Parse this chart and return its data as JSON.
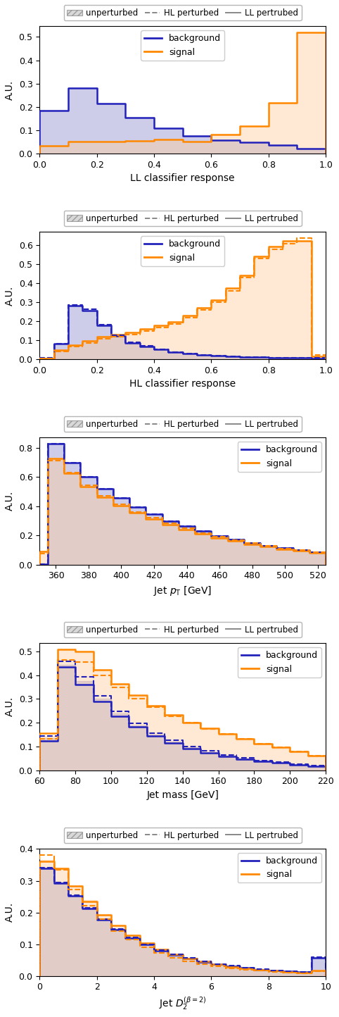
{
  "panels": [
    {
      "xlabel": "LL classifier response",
      "bins": [
        0.0,
        0.1,
        0.2,
        0.3,
        0.4,
        0.5,
        0.6,
        0.7,
        0.8,
        0.9,
        1.0
      ],
      "bg_unpert": [
        0.185,
        0.28,
        0.215,
        0.155,
        0.108,
        0.075,
        0.058,
        0.048,
        0.035,
        0.022
      ],
      "sig_unpert": [
        0.032,
        0.05,
        0.05,
        0.054,
        0.06,
        0.052,
        0.08,
        0.118,
        0.218,
        0.52
      ],
      "bg_HL": null,
      "sig_HL": null,
      "bg_LL": [
        0.185,
        0.28,
        0.215,
        0.155,
        0.108,
        0.075,
        0.058,
        0.048,
        0.035,
        0.022
      ],
      "sig_LL": [
        0.032,
        0.05,
        0.05,
        0.054,
        0.06,
        0.052,
        0.08,
        0.118,
        0.218,
        0.52
      ],
      "show_HL": false,
      "show_LL": true,
      "inner_legend_loc": "upper center"
    },
    {
      "xlabel": "HL classifier response",
      "bins": [
        0.0,
        0.05,
        0.1,
        0.15,
        0.2,
        0.25,
        0.3,
        0.35,
        0.4,
        0.45,
        0.5,
        0.55,
        0.6,
        0.65,
        0.7,
        0.75,
        0.8,
        0.85,
        0.9,
        0.95,
        1.0
      ],
      "bg_unpert": [
        0.004,
        0.08,
        0.28,
        0.255,
        0.178,
        0.12,
        0.085,
        0.065,
        0.05,
        0.036,
        0.028,
        0.022,
        0.018,
        0.014,
        0.011,
        0.009,
        0.007,
        0.006,
        0.005,
        0.004
      ],
      "sig_unpert": [
        0.004,
        0.048,
        0.075,
        0.095,
        0.118,
        0.128,
        0.14,
        0.158,
        0.178,
        0.196,
        0.23,
        0.27,
        0.312,
        0.372,
        0.442,
        0.542,
        0.592,
        0.622,
        0.622,
        0.015
      ],
      "bg_HL": [
        0.005,
        0.082,
        0.286,
        0.262,
        0.182,
        0.124,
        0.088,
        0.068,
        0.052,
        0.038,
        0.029,
        0.023,
        0.019,
        0.015,
        0.012,
        0.01,
        0.008,
        0.007,
        0.006,
        0.005
      ],
      "sig_HL": [
        0.003,
        0.04,
        0.065,
        0.085,
        0.108,
        0.118,
        0.128,
        0.148,
        0.168,
        0.185,
        0.218,
        0.258,
        0.298,
        0.358,
        0.428,
        0.528,
        0.578,
        0.608,
        0.638,
        0.02
      ],
      "bg_LL": null,
      "sig_LL": null,
      "show_HL": true,
      "show_LL": false,
      "inner_legend_loc": "upper center"
    },
    {
      "xlabel": "Jet $p_\\mathrm{T}$ [GeV]",
      "bins": [
        350,
        355,
        365,
        375,
        385,
        395,
        405,
        415,
        425,
        435,
        445,
        455,
        465,
        475,
        485,
        495,
        505,
        515,
        525
      ],
      "bg_unpert": [
        0.005,
        0.83,
        0.7,
        0.6,
        0.52,
        0.455,
        0.395,
        0.345,
        0.3,
        0.262,
        0.228,
        0.198,
        0.172,
        0.15,
        0.13,
        0.113,
        0.098,
        0.085
      ],
      "sig_unpert": [
        0.095,
        0.73,
        0.622,
        0.528,
        0.458,
        0.398,
        0.348,
        0.308,
        0.268,
        0.235,
        0.205,
        0.18,
        0.157,
        0.137,
        0.12,
        0.104,
        0.092,
        0.08
      ],
      "bg_HL": [
        0.005,
        0.83,
        0.7,
        0.6,
        0.52,
        0.455,
        0.395,
        0.345,
        0.3,
        0.262,
        0.228,
        0.198,
        0.172,
        0.15,
        0.13,
        0.113,
        0.098,
        0.085
      ],
      "sig_HL": [
        0.078,
        0.712,
        0.632,
        0.542,
        0.472,
        0.412,
        0.362,
        0.322,
        0.282,
        0.248,
        0.216,
        0.19,
        0.166,
        0.146,
        0.128,
        0.112,
        0.1,
        0.088
      ],
      "bg_LL": [
        0.005,
        0.83,
        0.7,
        0.6,
        0.52,
        0.455,
        0.395,
        0.345,
        0.3,
        0.262,
        0.228,
        0.198,
        0.172,
        0.15,
        0.13,
        0.113,
        0.098,
        0.085
      ],
      "sig_LL": [
        0.09,
        0.725,
        0.627,
        0.535,
        0.464,
        0.404,
        0.354,
        0.314,
        0.275,
        0.241,
        0.21,
        0.184,
        0.161,
        0.141,
        0.123,
        0.107,
        0.095,
        0.083
      ],
      "show_HL": true,
      "show_LL": true,
      "inner_legend_loc": "upper right"
    },
    {
      "xlabel": "Jet mass [GeV]",
      "bins": [
        60,
        70,
        80,
        90,
        100,
        110,
        120,
        130,
        140,
        150,
        160,
        170,
        180,
        190,
        200,
        210,
        220
      ],
      "bg_unpert": [
        0.135,
        0.445,
        0.375,
        0.3,
        0.238,
        0.19,
        0.15,
        0.12,
        0.096,
        0.077,
        0.062,
        0.05,
        0.04,
        0.032,
        0.025,
        0.018
      ],
      "sig_unpert": [
        0.145,
        0.505,
        0.495,
        0.42,
        0.36,
        0.31,
        0.268,
        0.228,
        0.198,
        0.172,
        0.148,
        0.128,
        0.108,
        0.092,
        0.075,
        0.058
      ],
      "bg_HL": [
        0.145,
        0.458,
        0.392,
        0.312,
        0.248,
        0.198,
        0.157,
        0.126,
        0.101,
        0.081,
        0.065,
        0.053,
        0.042,
        0.034,
        0.027,
        0.02
      ],
      "sig_HL": [
        0.132,
        0.465,
        0.455,
        0.4,
        0.348,
        0.302,
        0.265,
        0.228,
        0.2,
        0.175,
        0.152,
        0.132,
        0.112,
        0.096,
        0.079,
        0.062
      ],
      "bg_LL": [
        0.125,
        0.435,
        0.362,
        0.29,
        0.228,
        0.183,
        0.144,
        0.115,
        0.092,
        0.073,
        0.059,
        0.048,
        0.038,
        0.031,
        0.024,
        0.017
      ],
      "sig_LL": [
        0.155,
        0.51,
        0.5,
        0.424,
        0.364,
        0.315,
        0.272,
        0.232,
        0.202,
        0.176,
        0.152,
        0.132,
        0.112,
        0.096,
        0.078,
        0.06
      ],
      "show_HL": true,
      "show_LL": true,
      "inner_legend_loc": "upper right"
    },
    {
      "xlabel": "Jet $D_2^{(\\beta=2)}$",
      "bins": [
        0.0,
        0.5,
        1.0,
        1.5,
        2.0,
        2.5,
        3.0,
        3.5,
        4.0,
        4.5,
        5.0,
        5.5,
        6.0,
        6.5,
        7.0,
        7.5,
        8.0,
        8.5,
        9.0,
        9.5,
        10.0
      ],
      "bg_unpert": [
        0.34,
        0.295,
        0.255,
        0.215,
        0.178,
        0.148,
        0.122,
        0.1,
        0.082,
        0.068,
        0.056,
        0.046,
        0.038,
        0.032,
        0.026,
        0.022,
        0.018,
        0.015,
        0.013,
        0.06
      ],
      "sig_unpert": [
        0.365,
        0.34,
        0.285,
        0.238,
        0.195,
        0.16,
        0.13,
        0.106,
        0.086,
        0.07,
        0.057,
        0.047,
        0.038,
        0.031,
        0.026,
        0.021,
        0.018,
        0.015,
        0.012,
        0.02
      ],
      "bg_HL": [
        0.34,
        0.295,
        0.255,
        0.215,
        0.178,
        0.148,
        0.122,
        0.1,
        0.082,
        0.068,
        0.056,
        0.046,
        0.038,
        0.032,
        0.026,
        0.022,
        0.018,
        0.015,
        0.013,
        0.06
      ],
      "sig_HL": [
        0.382,
        0.335,
        0.272,
        0.222,
        0.178,
        0.142,
        0.114,
        0.091,
        0.073,
        0.058,
        0.046,
        0.037,
        0.03,
        0.024,
        0.02,
        0.016,
        0.013,
        0.011,
        0.009,
        0.015
      ],
      "bg_LL": [
        0.338,
        0.293,
        0.253,
        0.213,
        0.176,
        0.146,
        0.12,
        0.098,
        0.08,
        0.066,
        0.054,
        0.044,
        0.036,
        0.03,
        0.025,
        0.02,
        0.017,
        0.014,
        0.012,
        0.058
      ],
      "sig_LL": [
        0.36,
        0.338,
        0.283,
        0.235,
        0.193,
        0.158,
        0.128,
        0.104,
        0.084,
        0.068,
        0.055,
        0.045,
        0.036,
        0.029,
        0.024,
        0.02,
        0.016,
        0.013,
        0.011,
        0.018
      ],
      "show_HL": true,
      "show_LL": true,
      "inner_legend_loc": "upper right"
    }
  ],
  "bg_fill_color": "#8888cc",
  "sig_fill_color": "#ffcc99",
  "bg_line_color": "#2222bb",
  "sig_line_color": "#ff8800",
  "fill_alpha": 0.42,
  "ylabel": "A.U.",
  "fig_width": 4.82,
  "fig_height": 14.44,
  "dpi": 100
}
